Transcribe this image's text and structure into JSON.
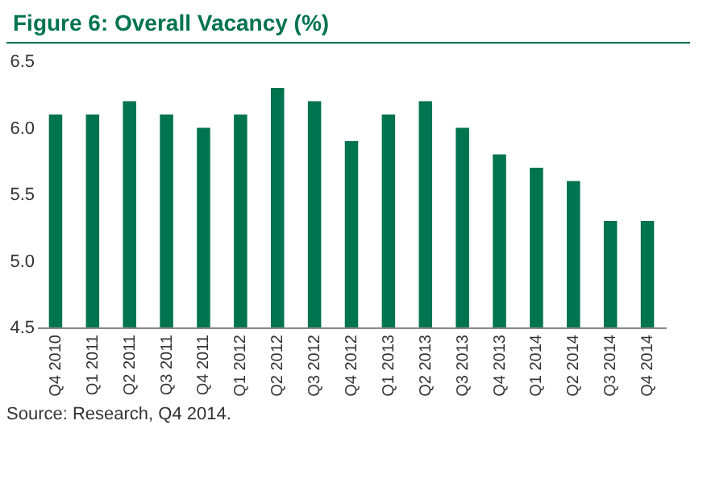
{
  "chart_data": {
    "type": "bar",
    "title": "Figure 6: Overall Vacancy (%)",
    "categories": [
      "Q4 2010",
      "Q1 2011",
      "Q2 2011",
      "Q3 2011",
      "Q4 2011",
      "Q1 2012",
      "Q2 2012",
      "Q3 2012",
      "Q4 2012",
      "Q1 2013",
      "Q2 2013",
      "Q3 2013",
      "Q4 2013",
      "Q1 2014",
      "Q2 2014",
      "Q3 2014",
      "Q4 2014"
    ],
    "values": [
      6.1,
      6.1,
      6.2,
      6.1,
      6.0,
      6.1,
      6.3,
      6.2,
      5.9,
      6.1,
      6.2,
      6.0,
      5.8,
      5.7,
      5.6,
      5.3,
      5.3
    ],
    "color": "#00734f",
    "ylim": [
      4.5,
      6.5
    ],
    "yticks": [
      4.5,
      {
        "value": 5,
        "label": "5.0"
      },
      5.5,
      {
        "value": 6,
        "label": "6.0"
      },
      6.5
    ],
    "grid": false,
    "annotations": [
      "Source: Research, Q4 2014."
    ]
  }
}
